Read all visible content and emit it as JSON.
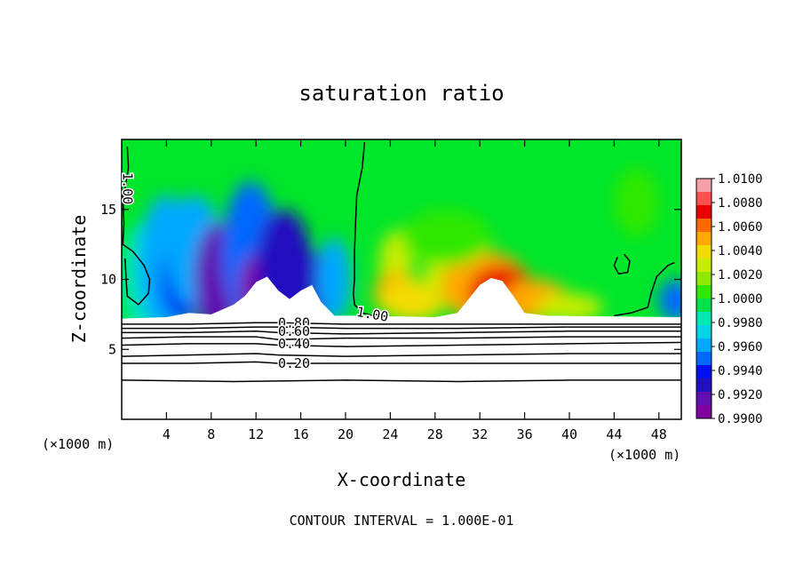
{
  "chart_data": {
    "type": "heatmap",
    "title": "saturation ratio",
    "xlabel": "X-coordinate",
    "ylabel": "Z-coordinate",
    "x_unit_left": "(×1000 m)",
    "x_unit_right": "(×1000 m)",
    "footer": "CONTOUR INTERVAL = 1.000E-01",
    "xlim": [
      0,
      50
    ],
    "ylim": [
      0,
      20
    ],
    "x_ticks": [
      4,
      8,
      12,
      16,
      20,
      24,
      28,
      32,
      36,
      40,
      44,
      48
    ],
    "y_ticks": [
      5,
      10,
      15
    ],
    "colorbar": {
      "labels": [
        "1.0100",
        "1.0080",
        "1.0060",
        "1.0040",
        "1.0020",
        "1.0000",
        "0.9980",
        "0.9960",
        "0.9940",
        "0.9920",
        "0.9900"
      ],
      "range": [
        0.99,
        1.01
      ],
      "colors": [
        "#f5a0a8",
        "#ff5050",
        "#e80000",
        "#ff6a00",
        "#ffa800",
        "#f2dc00",
        "#c8ec00",
        "#8ee800",
        "#2ee800",
        "#00e24a",
        "#00e8b4",
        "#00d4e8",
        "#00a8ff",
        "#0068ff",
        "#0010f0",
        "#2010c0",
        "#6010b0",
        "#8000a0"
      ]
    },
    "contour_labels": [
      {
        "text": "1.00",
        "x": 0.5,
        "z": 16.5,
        "rotate": 90
      },
      {
        "text": "1.00",
        "x": 22.4,
        "z": 7.5,
        "rotate": 10
      },
      {
        "text": "0.80",
        "x": 15.4,
        "z": 6.9,
        "rotate": 0
      },
      {
        "text": "0.60",
        "x": 15.4,
        "z": 6.3,
        "rotate": 0
      },
      {
        "text": "0.40",
        "x": 15.4,
        "z": 5.4,
        "rotate": 0
      },
      {
        "text": "0.20",
        "x": 15.4,
        "z": 4.0,
        "rotate": 0
      }
    ],
    "contours": [
      {
        "level": 0.8,
        "points": [
          [
            0,
            6.8
          ],
          [
            6,
            6.8
          ],
          [
            12,
            6.9
          ],
          [
            14,
            6.9
          ],
          [
            20,
            6.8
          ],
          [
            30,
            6.8
          ],
          [
            40,
            6.8
          ],
          [
            50,
            6.8
          ]
        ]
      },
      {
        "level": 0.7,
        "points": [
          [
            0,
            6.5
          ],
          [
            6,
            6.5
          ],
          [
            12,
            6.6
          ],
          [
            14,
            6.6
          ],
          [
            20,
            6.5
          ],
          [
            30,
            6.5
          ],
          [
            40,
            6.6
          ],
          [
            50,
            6.6
          ]
        ]
      },
      {
        "level": 0.6,
        "points": [
          [
            0,
            6.2
          ],
          [
            6,
            6.2
          ],
          [
            12,
            6.3
          ],
          [
            14,
            6.2
          ],
          [
            20,
            6.1
          ],
          [
            30,
            6.2
          ],
          [
            40,
            6.3
          ],
          [
            50,
            6.3
          ]
        ]
      },
      {
        "level": 0.5,
        "points": [
          [
            0,
            5.8
          ],
          [
            6,
            5.9
          ],
          [
            12,
            5.9
          ],
          [
            14,
            5.7
          ],
          [
            20,
            5.8
          ],
          [
            30,
            5.8
          ],
          [
            40,
            5.9
          ],
          [
            50,
            5.9
          ]
        ]
      },
      {
        "level": 0.4,
        "points": [
          [
            0,
            5.3
          ],
          [
            6,
            5.4
          ],
          [
            12,
            5.4
          ],
          [
            14,
            5.3
          ],
          [
            20,
            5.2
          ],
          [
            30,
            5.3
          ],
          [
            40,
            5.4
          ],
          [
            50,
            5.5
          ]
        ]
      },
      {
        "level": 0.3,
        "points": [
          [
            0,
            4.5
          ],
          [
            6,
            4.6
          ],
          [
            12,
            4.7
          ],
          [
            14,
            4.6
          ],
          [
            20,
            4.5
          ],
          [
            30,
            4.6
          ],
          [
            40,
            4.7
          ],
          [
            50,
            4.7
          ]
        ]
      },
      {
        "level": 0.2,
        "points": [
          [
            0,
            4.0
          ],
          [
            6,
            4.0
          ],
          [
            12,
            4.1
          ],
          [
            14,
            4.0
          ],
          [
            20,
            4.0
          ],
          [
            30,
            4.0
          ],
          [
            40,
            4.0
          ],
          [
            50,
            4.0
          ]
        ]
      },
      {
        "level": 0.1,
        "points": [
          [
            0,
            2.8
          ],
          [
            10,
            2.7
          ],
          [
            20,
            2.8
          ],
          [
            30,
            2.7
          ],
          [
            40,
            2.8
          ],
          [
            50,
            2.8
          ]
        ]
      }
    ],
    "unity_contours": [
      {
        "points": [
          [
            0.5,
            19.5
          ],
          [
            0.6,
            18
          ],
          [
            0.3,
            16.5
          ],
          [
            0.1,
            16
          ],
          [
            0.2,
            14
          ],
          [
            0.1,
            12.5
          ],
          [
            1,
            12
          ],
          [
            2,
            11
          ],
          [
            2.5,
            10
          ],
          [
            2.4,
            9
          ],
          [
            1.5,
            8.2
          ],
          [
            0.5,
            8.8
          ],
          [
            0.4,
            10
          ],
          [
            0.3,
            11.5
          ]
        ]
      },
      {
        "points": [
          [
            21.7,
            19.8
          ],
          [
            21.5,
            18
          ],
          [
            21.0,
            16
          ],
          [
            20.9,
            14
          ],
          [
            20.8,
            12
          ],
          [
            20.8,
            10
          ],
          [
            20.7,
            9
          ],
          [
            20.8,
            8.2
          ],
          [
            21.5,
            7.6
          ],
          [
            22.5,
            7.4
          ]
        ]
      },
      {
        "points": [
          [
            44.0,
            7.4
          ],
          [
            45.5,
            7.6
          ],
          [
            47,
            8
          ],
          [
            47.3,
            9
          ],
          [
            47.8,
            10.2
          ],
          [
            48.8,
            11
          ],
          [
            49.4,
            11.2
          ]
        ]
      },
      {
        "points": [
          [
            44.3,
            11.6
          ],
          [
            44.0,
            11.0
          ],
          [
            44.4,
            10.4
          ],
          [
            45.2,
            10.5
          ],
          [
            45.4,
            11.3
          ],
          [
            44.9,
            11.8
          ]
        ]
      }
    ],
    "blobs": [
      {
        "x": 1.5,
        "z": 10,
        "rx": 1.5,
        "rz": 4,
        "v": 0.998
      },
      {
        "x": 4.0,
        "z": 11,
        "rx": 2.5,
        "rz": 5,
        "v": 0.996
      },
      {
        "x": 5.5,
        "z": 10,
        "rx": 2.0,
        "rz": 3,
        "v": 0.994
      },
      {
        "x": 6.5,
        "z": 12,
        "rx": 2.5,
        "rz": 4,
        "v": 0.996
      },
      {
        "x": 8.5,
        "z": 10,
        "rx": 2.0,
        "rz": 4,
        "v": 0.992
      },
      {
        "x": 11.5,
        "z": 12,
        "rx": 2.5,
        "rz": 5,
        "v": 0.9945
      },
      {
        "x": 12.5,
        "z": 9.5,
        "rx": 2.0,
        "rz": 2.5,
        "v": 0.991
      },
      {
        "x": 14.5,
        "z": 11,
        "rx": 2.5,
        "rz": 4,
        "v": 0.9925
      },
      {
        "x": 17.0,
        "z": 9.5,
        "rx": 2.0,
        "rz": 2.5,
        "v": 0.993
      },
      {
        "x": 19.0,
        "z": 10,
        "rx": 1.5,
        "rz": 3,
        "v": 0.9965
      },
      {
        "x": 24.5,
        "z": 11,
        "rx": 1.5,
        "rz": 2.5,
        "v": 1.003
      },
      {
        "x": 24.5,
        "z": 9.0,
        "rx": 2.0,
        "rz": 1.5,
        "v": 1.0045
      },
      {
        "x": 26.0,
        "z": 8.5,
        "rx": 3.0,
        "rz": 1.5,
        "v": 1.004
      },
      {
        "x": 30.0,
        "z": 10.5,
        "rx": 3.0,
        "rz": 2.5,
        "v": 1.003
      },
      {
        "x": 32.5,
        "z": 9.5,
        "rx": 4.0,
        "rz": 2.5,
        "v": 1.0055
      },
      {
        "x": 34.0,
        "z": 9.0,
        "rx": 3.0,
        "rz": 2.0,
        "v": 1.007
      },
      {
        "x": 37.0,
        "z": 8.5,
        "rx": 3.0,
        "rz": 1.5,
        "v": 1.0045
      },
      {
        "x": 40.0,
        "z": 8.0,
        "rx": 3.0,
        "rz": 1.0,
        "v": 1.003
      },
      {
        "x": 29.0,
        "z": 13.0,
        "rx": 4.0,
        "rz": 2.0,
        "v": 1.001
      },
      {
        "x": 46.0,
        "z": 15.5,
        "rx": 2.0,
        "rz": 2.5,
        "v": 1.0008
      },
      {
        "x": 49.5,
        "z": 8.5,
        "rx": 1.5,
        "rz": 1.5,
        "v": 0.9955
      }
    ]
  }
}
